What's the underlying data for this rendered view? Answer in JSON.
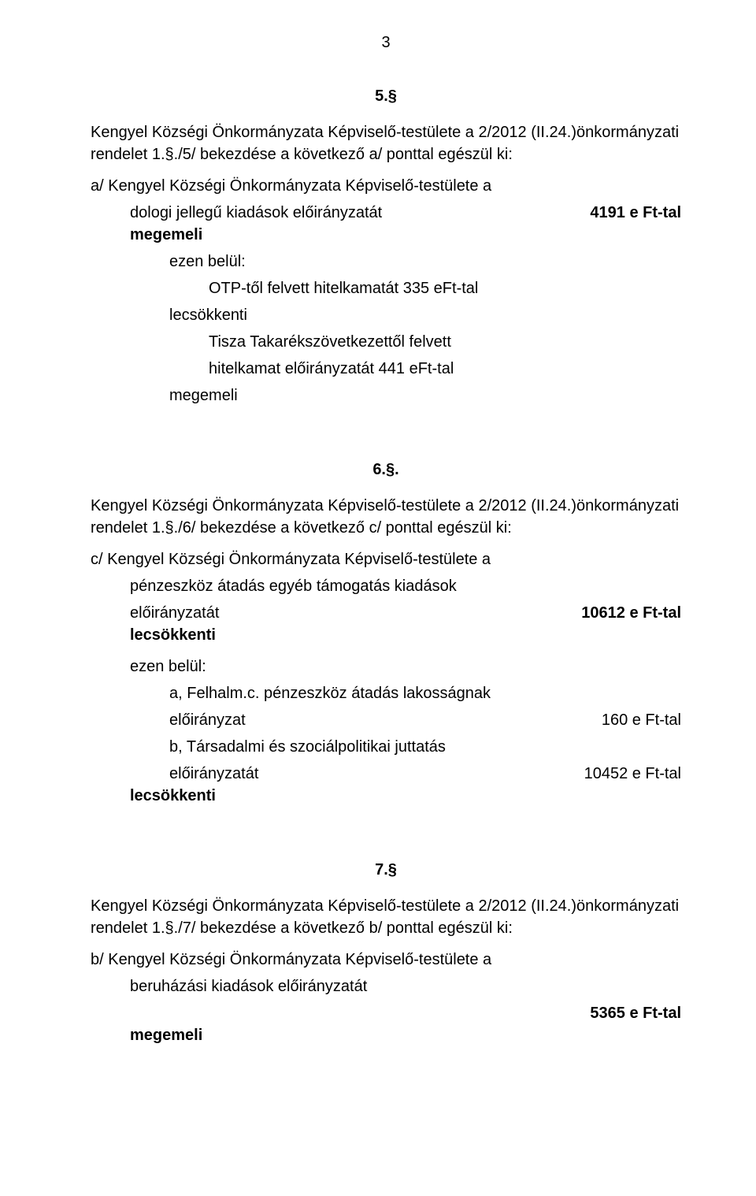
{
  "meta": {
    "page_number": "3",
    "background_color": "#ffffff",
    "text_color": "#000000",
    "font_family": "Arial",
    "base_font_size_pt": 15
  },
  "section5": {
    "number": "5.§",
    "intro": "Kengyel Községi Önkormányzata Képviselő-testülete a 2/2012 (II.24.)önkormányzati rendelet 1.§./5/ bekezdése a következő a/ ponttal egészül ki:",
    "a_line1": "a/ Kengyel Községi Önkormányzata Képviselő-testülete a",
    "a_line2": "dologi jellegű kiadások előirányzatát",
    "amount_a": "4191 e Ft-tal",
    "megemeli": "megemeli",
    "ezen_belul": "ezen belül:",
    "otp": "OTP-től felvett hitelkamatát  335 eFt-tal",
    "lecsokkenti": "lecsökkenti",
    "tisza1": "Tisza Takarékszövetkezettől felvett",
    "tisza2": "hitelkamat előirányzatát 441 eFt-tal",
    "megemeli2": "megemeli"
  },
  "section6": {
    "number": "6.§.",
    "intro": "Kengyel Községi Önkormányzata Képviselő-testülete a 2/2012 (II.24.)önkormányzati rendelet 1.§./6/ bekezdése a következő c/ ponttal egészül ki:",
    "c_line1": "c/  Kengyel Községi Önkormányzata Képviselő-testülete a",
    "c_line2": "pénzeszköz átadás egyéb támogatás kiadások",
    "c_line3": "előirányzatát",
    "amount_c": "10612  e Ft-tal",
    "lecsokkenti": "lecsökkenti",
    "ezen_belul": "ezen belül:",
    "a_sub1": "a, Felhalm.c. pénzeszköz átadás lakosságnak",
    "a_sub2": "előirányzat",
    "amount_a_sub": "160 e Ft-tal",
    "b_sub1": "b, Társadalmi és szociálpolitikai juttatás",
    "b_sub2": "előirányzatát",
    "amount_b_sub": "10452  e Ft-tal",
    "lecsokkenti2": "lecsökkenti"
  },
  "section7": {
    "number": "7.§",
    "intro": "Kengyel Községi Önkormányzata Képviselő-testülete a 2/2012 (II.24.)önkormányzati rendelet 1.§./7/ bekezdése a következő b/ ponttal egészül ki:",
    "b_line1": "b/ Kengyel Községi Önkormányzata Képviselő-testülete a",
    "b_line2": "beruházási kiadások  előirányzatát",
    "amount_b": "5365 e Ft-tal",
    "megemeli": "megemeli"
  }
}
